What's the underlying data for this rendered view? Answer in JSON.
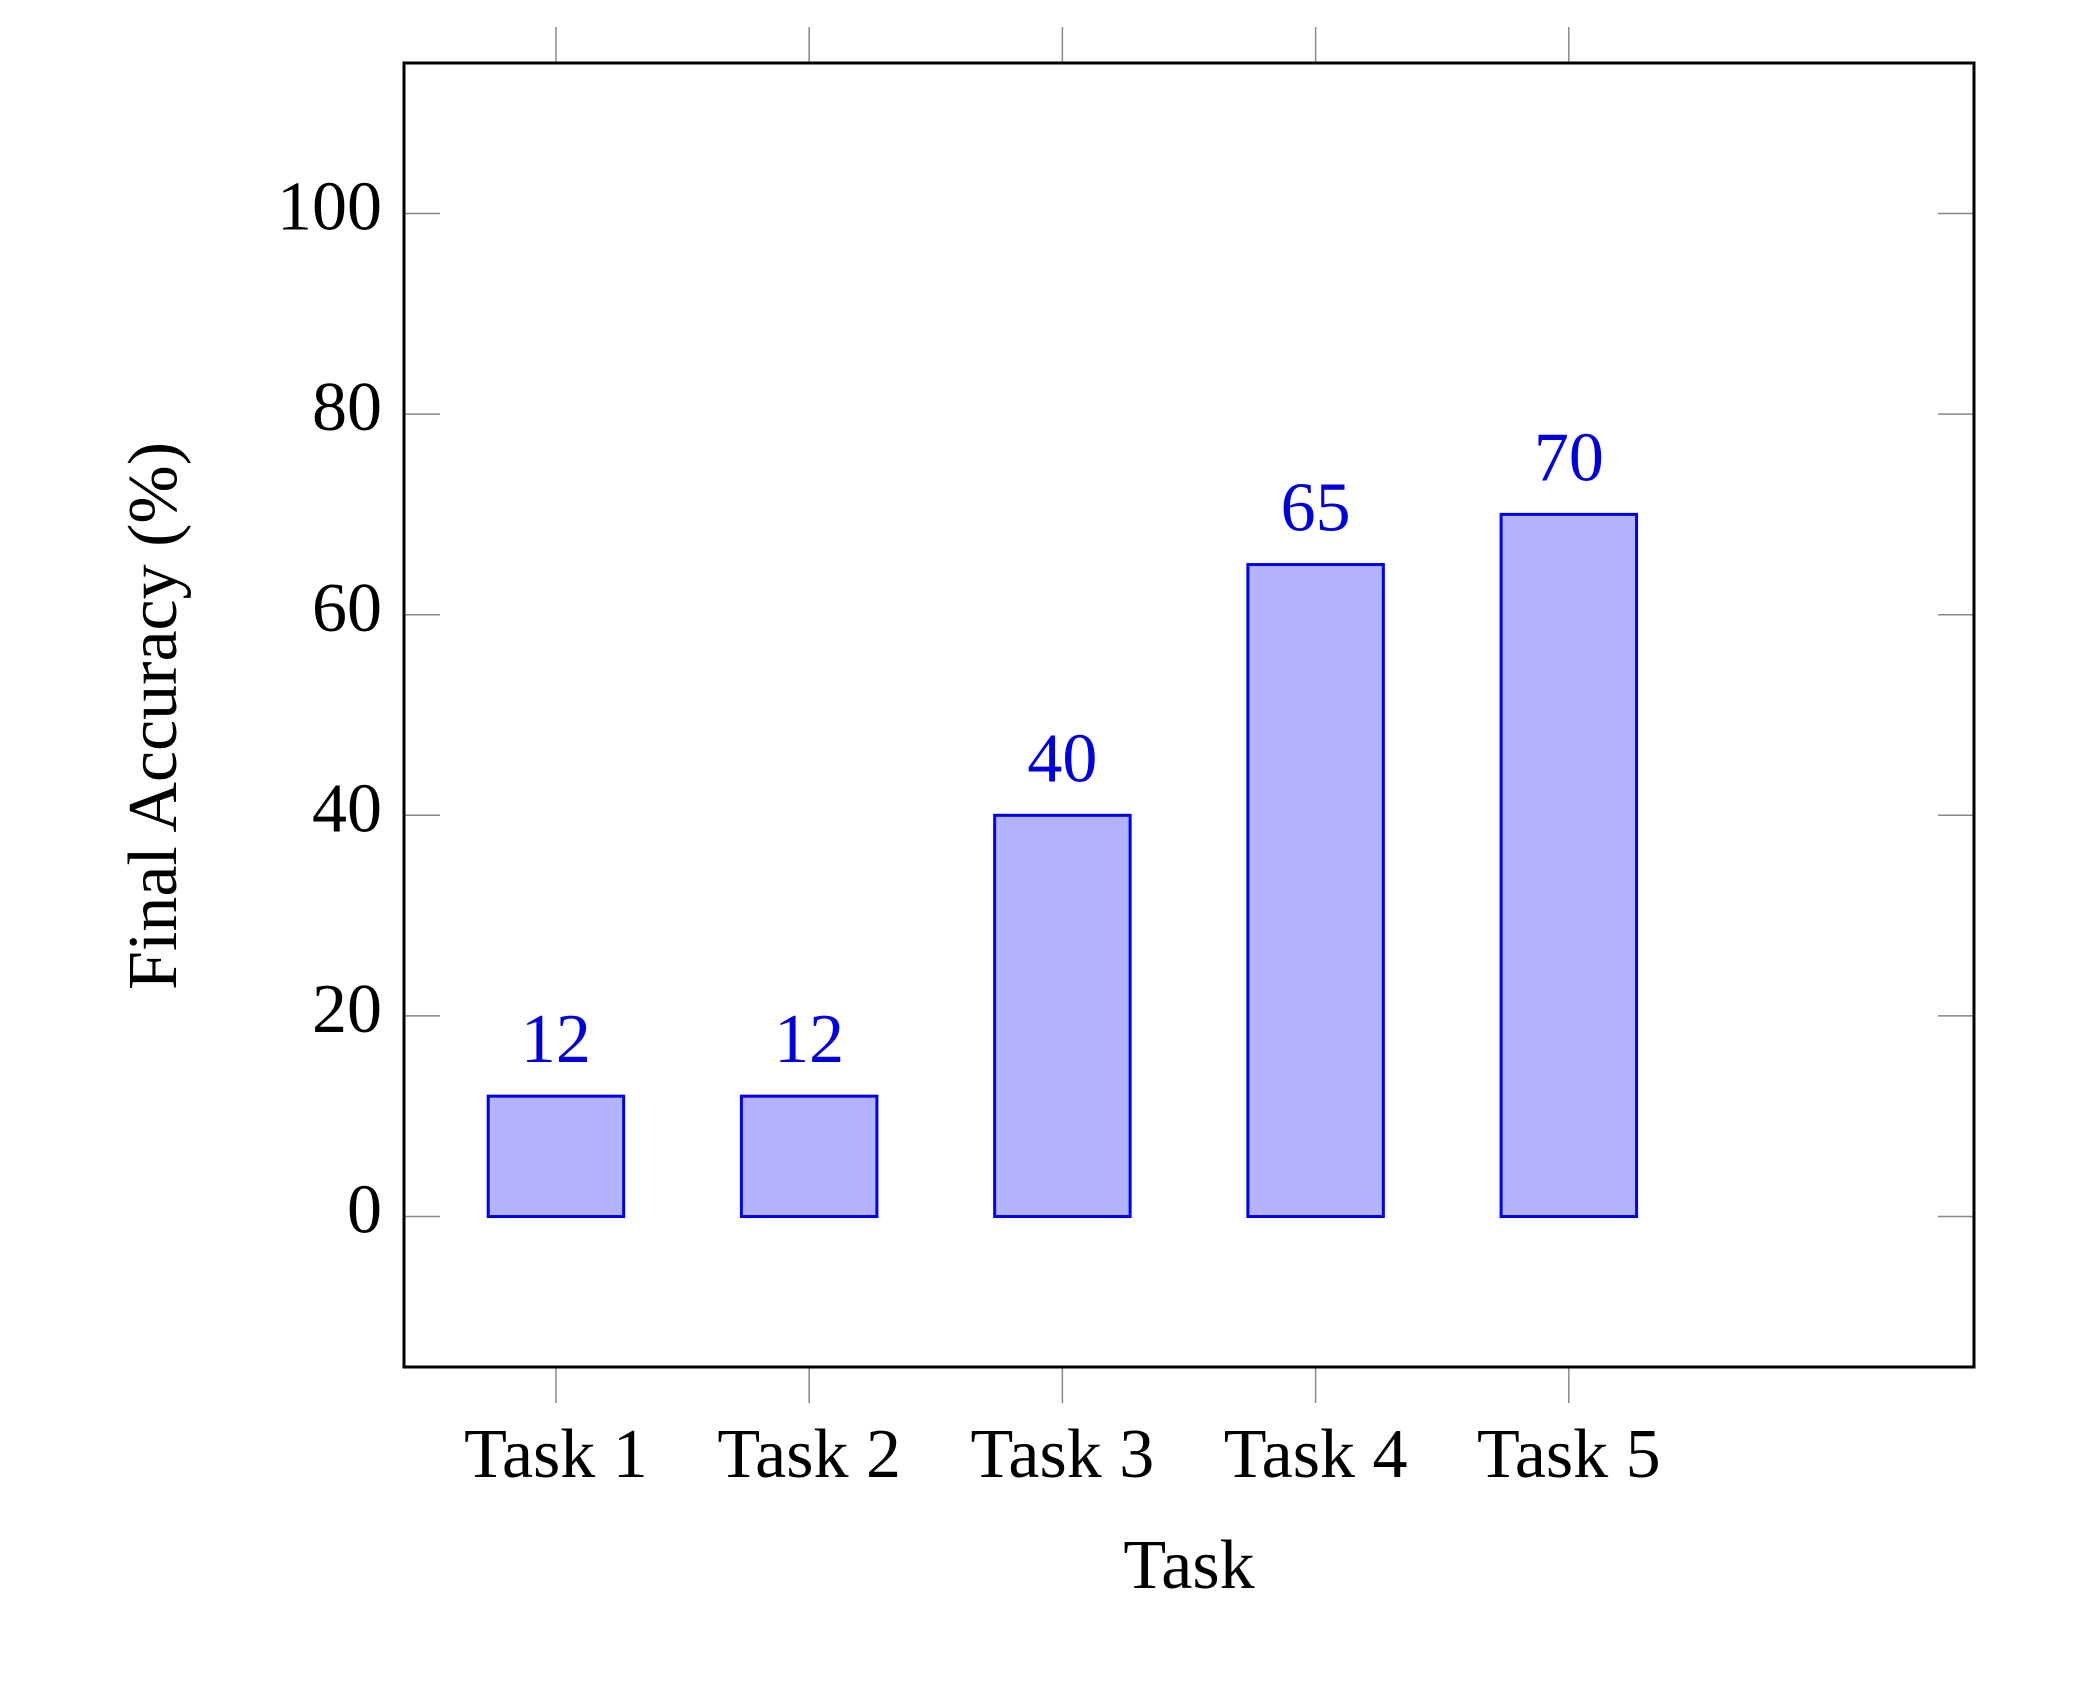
{
  "chart_data": {
    "type": "bar",
    "xlabel": "Task",
    "ylabel": "Final Accuracy (%)",
    "categories": [
      "Task 1",
      "Task 2",
      "Task 3",
      "Task 4",
      "Task 5"
    ],
    "values": [
      12,
      12,
      40,
      65,
      70
    ],
    "color": "#b3b3ff",
    "edgecolor": "#0000ee",
    "ylim": [
      -15,
      115
    ],
    "yticks": [
      0,
      20,
      40,
      60,
      80,
      100
    ],
    "grid": false
  }
}
